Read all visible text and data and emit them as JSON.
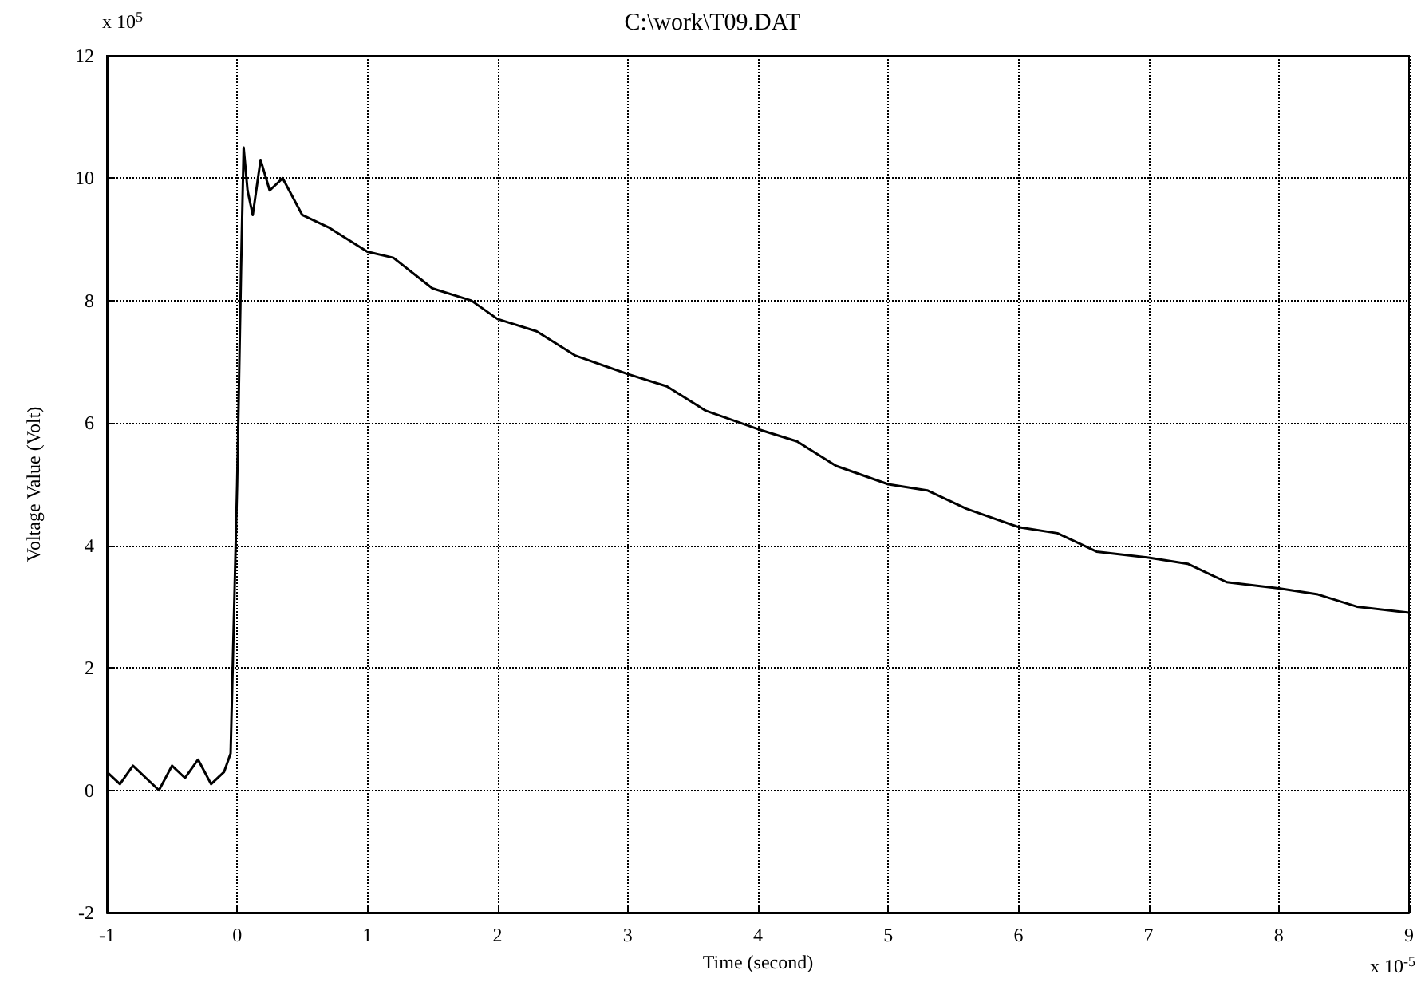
{
  "chart_data": {
    "type": "line",
    "title": "C:\\work\\T09.DAT",
    "xlabel": "Time (second)",
    "ylabel": "Voltage Value (Volt)",
    "x": [
      -1,
      -0.9,
      -0.8,
      -0.7,
      -0.6,
      -0.5,
      -0.4,
      -0.3,
      -0.2,
      -0.1,
      -0.05,
      0,
      0.03,
      0.05,
      0.08,
      0.12,
      0.18,
      0.25,
      0.35,
      0.5,
      0.7,
      1,
      1.2,
      1.5,
      1.8,
      2,
      2.3,
      2.6,
      3,
      3.3,
      3.6,
      4,
      4.3,
      4.6,
      5,
      5.3,
      5.6,
      6,
      6.3,
      6.6,
      7,
      7.3,
      7.6,
      8,
      8.3,
      8.6,
      9
    ],
    "series": [
      {
        "color": "#000000",
        "values": [
          0.3,
          0.1,
          0.4,
          0.2,
          0.0,
          0.4,
          0.2,
          0.5,
          0.1,
          0.3,
          0.6,
          5,
          8.5,
          10.5,
          9.8,
          9.4,
          10.3,
          9.8,
          10.0,
          9.4,
          9.2,
          8.8,
          8.7,
          8.2,
          8.0,
          7.7,
          7.5,
          7.1,
          6.8,
          6.6,
          6.2,
          5.9,
          5.7,
          5.3,
          5.0,
          4.9,
          4.6,
          4.3,
          4.2,
          3.9,
          3.8,
          3.7,
          3.4,
          3.3,
          3.2,
          3.0,
          2.9
        ]
      }
    ],
    "xlim": [
      -1,
      9
    ],
    "xticks": [
      -1,
      0,
      1,
      2,
      3,
      4,
      5,
      6,
      7,
      8,
      9
    ],
    "ylim": [
      -2,
      12
    ],
    "yticks": [
      -2,
      0,
      2,
      4,
      6,
      8,
      10,
      12
    ],
    "grid": true,
    "line_style": "solid",
    "marker": "none",
    "annotations": [
      "x 10$^{5}$",
      "x 10$^{-5}$"
    ]
  }
}
